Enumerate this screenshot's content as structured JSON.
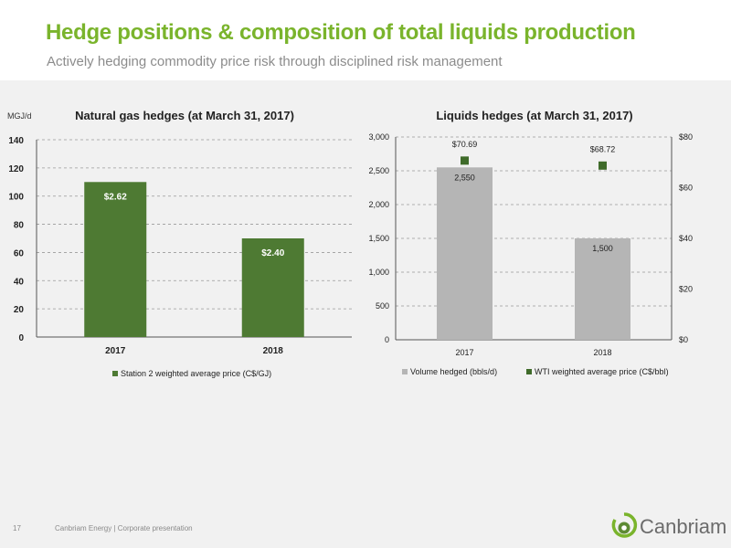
{
  "header": {
    "title": "Hedge positions & composition of total liquids production",
    "subtitle": "Actively hedging commodity price risk through disciplined risk management"
  },
  "colors": {
    "title_green": "#7ab42c",
    "bar_green": "#4e7a33",
    "bar_grey": "#b5b5b5",
    "marker_green": "#3f6b2a"
  },
  "chart_data": [
    {
      "type": "bar",
      "title": "Natural gas hedges (at March 31, 2017)",
      "ylabel": "MGJ/d",
      "categories": [
        "2017",
        "2018"
      ],
      "series": [
        {
          "name": "Station 2 weighted average price (C$/GJ)",
          "values": [
            110,
            70
          ],
          "data_labels": [
            "$2.62",
            "$2.40"
          ]
        }
      ],
      "ylim": [
        0,
        140
      ],
      "yticks": [
        0,
        20,
        40,
        60,
        80,
        100,
        120,
        140
      ],
      "grid": true,
      "legend": "bottom"
    },
    {
      "type": "bar",
      "title": "Liquids hedges (at March 31, 2017)",
      "categories": [
        "2017",
        "2018"
      ],
      "series": [
        {
          "name": "Volume hedged (bbls/d)",
          "type": "bar",
          "axis": "left",
          "values": [
            2550,
            1500
          ],
          "data_labels": [
            "2,550",
            "1,500"
          ]
        },
        {
          "name": "WTI weighted average price (C$/bbl)",
          "type": "scatter",
          "axis": "right",
          "values": [
            70.69,
            68.72
          ],
          "data_labels": [
            "$70.69",
            "$68.72"
          ]
        }
      ],
      "ylim": [
        0,
        3000
      ],
      "yticks": [
        0,
        500,
        1000,
        1500,
        2000,
        2500,
        3000
      ],
      "ytick_labels": [
        "0",
        "500",
        "1,000",
        "1,500",
        "2,000",
        "2,500",
        "3,000"
      ],
      "y2lim": [
        0,
        80
      ],
      "y2ticks": [
        0,
        20,
        40,
        60,
        80
      ],
      "y2tick_labels": [
        "$0",
        "$20",
        "$40",
        "$60",
        "$80"
      ],
      "grid": true,
      "legend": "bottom"
    }
  ],
  "footer": {
    "page_number": "17",
    "text": "Canbriam Energy  |  Corporate presentation"
  },
  "logo": {
    "icon": "canbriam-logo-icon",
    "word": "Canbriam"
  }
}
